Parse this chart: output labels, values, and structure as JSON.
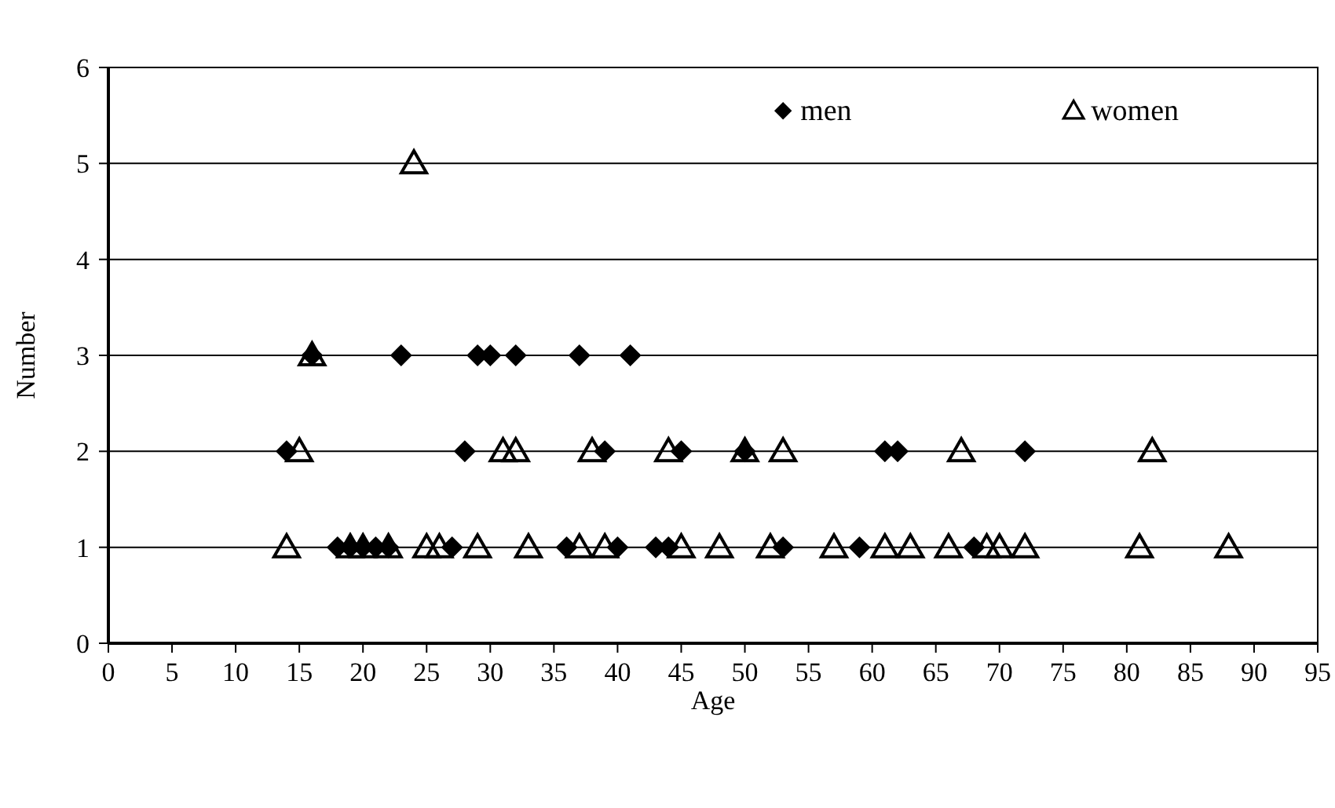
{
  "chart_data": {
    "type": "scatter",
    "xlabel": "Age",
    "ylabel": "Number",
    "xlim": [
      0,
      95
    ],
    "xticks": [
      0,
      5,
      10,
      15,
      20,
      25,
      30,
      35,
      40,
      45,
      50,
      55,
      60,
      65,
      70,
      75,
      80,
      85,
      90,
      95
    ],
    "ylim": [
      0,
      6
    ],
    "yticks": [
      0,
      1,
      2,
      3,
      4,
      5,
      6
    ],
    "grid": "y",
    "legend": "top right",
    "series": [
      {
        "name": "men",
        "color": "#000000",
        "marker": "diamond",
        "x": [
          16,
          23,
          29,
          30,
          32,
          37,
          41,
          14,
          28,
          39,
          45,
          50,
          61,
          62,
          72,
          18,
          19,
          20,
          21,
          22,
          27,
          36,
          40,
          43,
          44,
          53,
          59,
          68
        ],
        "values": [
          3,
          3,
          3,
          3,
          3,
          3,
          3,
          2,
          2,
          2,
          2,
          2,
          2,
          2,
          2,
          1,
          1,
          1,
          1,
          1,
          1,
          1,
          1,
          1,
          1,
          1,
          1,
          1
        ]
      },
      {
        "name": "women",
        "color": "#000000",
        "marker": "triangle",
        "x": [
          24,
          16,
          15,
          31,
          32,
          38,
          44,
          50,
          53,
          67,
          82,
          14,
          19,
          20,
          22,
          25,
          26,
          29,
          33,
          37,
          39,
          45,
          48,
          52,
          57,
          61,
          63,
          66,
          69,
          70,
          72,
          81,
          88
        ],
        "values": [
          5,
          3,
          2,
          2,
          2,
          2,
          2,
          2,
          2,
          2,
          2,
          1,
          1,
          1,
          1,
          1,
          1,
          1,
          1,
          1,
          1,
          1,
          1,
          1,
          1,
          1,
          1,
          1,
          1,
          1,
          1,
          1,
          1
        ]
      }
    ]
  }
}
